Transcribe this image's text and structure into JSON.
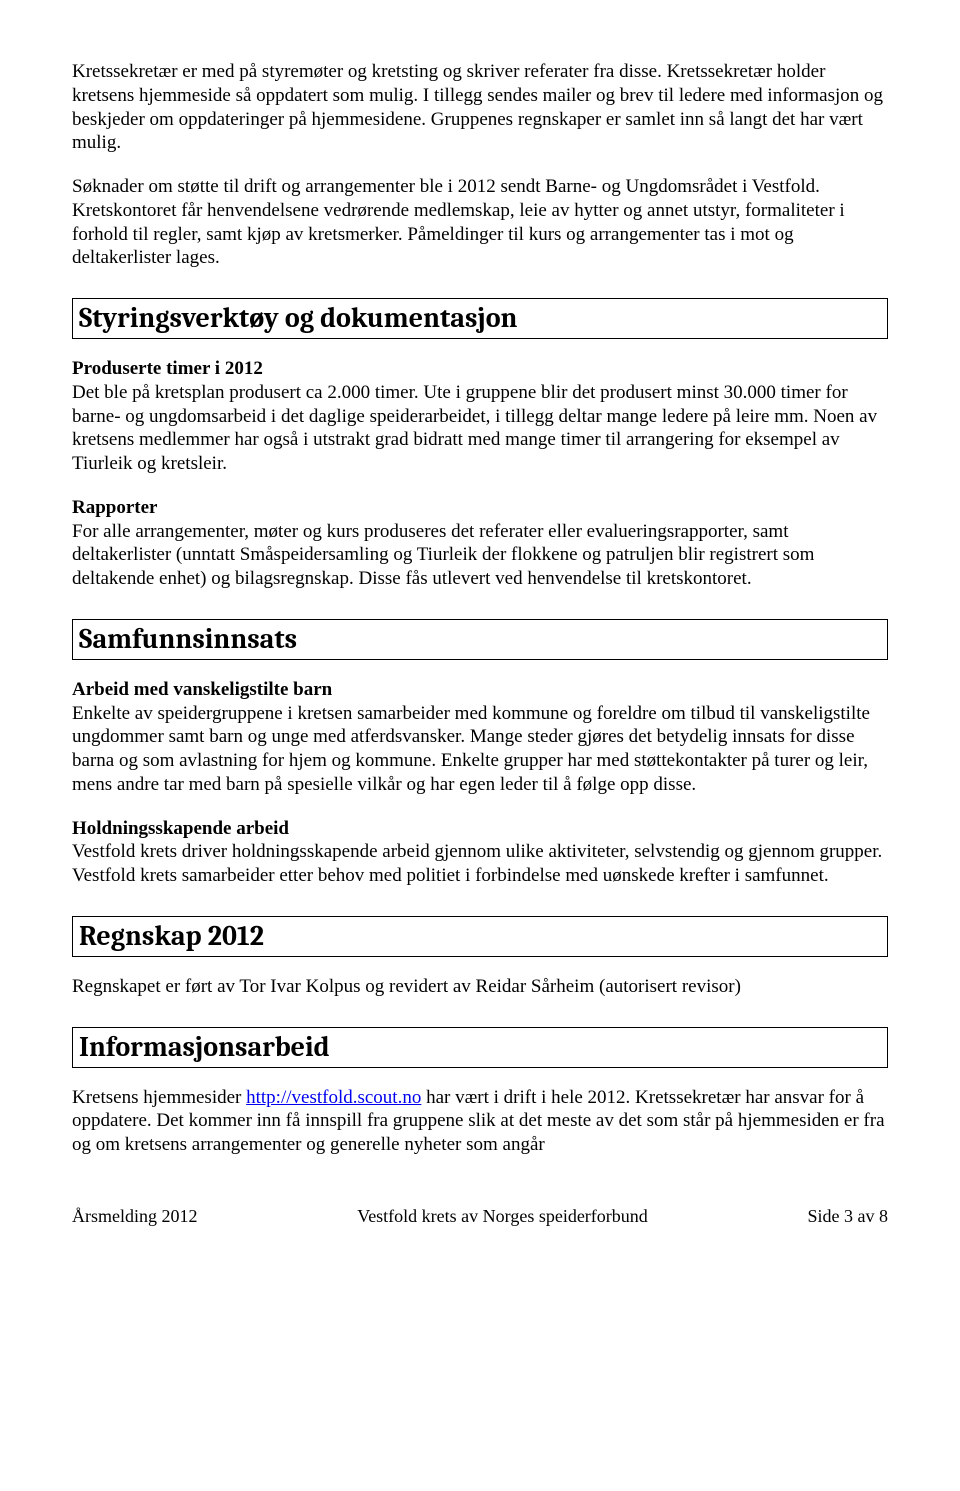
{
  "intro": {
    "p1": "Kretssekretær er med på styremøter og kretsting og skriver referater fra disse. Kretssekretær holder kretsens hjemmeside så oppdatert som mulig. I tillegg sendes mailer og brev til ledere med informasjon og beskjeder om oppdateringer på hjemmesidene. Gruppenes regnskaper er samlet inn så langt det har vært mulig.",
    "p2": "Søknader om støtte til drift og arrangementer ble i 2012 sendt Barne- og Ungdomsrådet i Vestfold. Kretskontoret får henvendelsene vedrørende medlemskap, leie av hytter og annet utstyr, formaliteter i forhold til regler, samt kjøp av kretsmerker. Påmeldinger til kurs og arrangementer tas i mot og deltakerlister lages."
  },
  "styringsverktoy": {
    "heading": "Styringsverktøy og dokumentasjon",
    "produserte_label": "Produserte timer i 2012",
    "produserte_body": "Det ble på kretsplan produsert ca 2.000 timer. Ute i gruppene blir det produsert minst 30.000 timer for barne- og ungdomsarbeid i det daglige speiderarbeidet, i tillegg deltar mange ledere på leire mm. Noen av kretsens medlemmer har også i utstrakt grad bidratt med mange timer til arrangering for eksempel av Tiurleik og kretsleir.",
    "rapporter_label": "Rapporter",
    "rapporter_body": "For alle arrangementer, møter og kurs produseres det referater eller evalueringsrapporter, samt deltakerlister (unntatt Småspeidersamling og Tiurleik der flokkene og patruljen blir registrert som deltakende enhet) og bilagsregnskap. Disse fås utlevert ved henvendelse til kretskontoret."
  },
  "samfunnsinnsats": {
    "heading": "Samfunnsinnsats",
    "sub1_label": "Arbeid med vanskeligstilte barn",
    "sub1_body": "Enkelte av speidergruppene i kretsen samarbeider med kommune og foreldre om tilbud til vanskeligstilte ungdommer samt barn og unge med atferdsvansker. Mange steder gjøres det betydelig innsats for disse barna og som avlastning for hjem og kommune.  Enkelte grupper har med støttekontakter på turer og leir, mens andre tar med barn på spesielle vilkår og har egen leder til å følge opp disse.",
    "sub2_label": "Holdningsskapende arbeid",
    "sub2_body": "Vestfold krets driver holdningsskapende arbeid gjennom ulike aktiviteter, selvstendig og gjennom grupper. Vestfold krets samarbeider etter behov med politiet i forbindelse med uønskede krefter i samfunnet."
  },
  "regnskap": {
    "heading": "Regnskap 2012",
    "body": "Regnskapet er ført av Tor Ivar Kolpus og revidert av Reidar Sårheim (autorisert revisor)"
  },
  "informasjonsarbeid": {
    "heading": "Informasjonsarbeid",
    "before_link": "Kretsens hjemmesider ",
    "link_text": "http://vestfold.scout.no",
    "after_link": " har vært i drift i hele 2012. Kretssekretær har ansvar for å oppdatere. Det kommer inn få innspill fra gruppene slik at det meste av det som står på hjemmesiden er fra og om kretsens arrangementer og generelle nyheter som angår"
  },
  "footer": {
    "left": "Årsmelding 2012",
    "center": "Vestfold krets av Norges speiderforbund",
    "right": "Side 3 av 8"
  }
}
